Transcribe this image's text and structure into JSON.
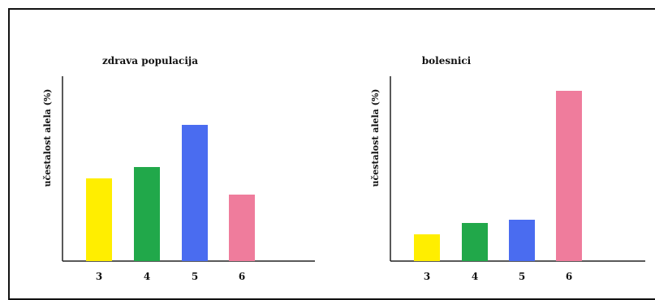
{
  "chart_data": [
    {
      "type": "bar",
      "title": "zdrava populacija",
      "xlabel": "",
      "ylabel": "učestalost alela (%)",
      "categories": [
        "3",
        "4",
        "5",
        "6"
      ],
      "values": [
        102,
        116,
        168,
        82
      ],
      "colors": [
        "#ffee00",
        "#21a84a",
        "#4a6cf0",
        "#ef7c9c"
      ],
      "ylim": [
        0,
        230
      ],
      "grid": false
    },
    {
      "type": "bar",
      "title": "bolesnici",
      "xlabel": "",
      "ylabel": "učestalost alela (%)",
      "categories": [
        "3",
        "4",
        "5",
        "6"
      ],
      "values": [
        33,
        47,
        51,
        210
      ],
      "colors": [
        "#ffee00",
        "#21a84a",
        "#4a6cf0",
        "#ef7c9c"
      ],
      "ylim": [
        0,
        230
      ],
      "grid": false
    }
  ]
}
